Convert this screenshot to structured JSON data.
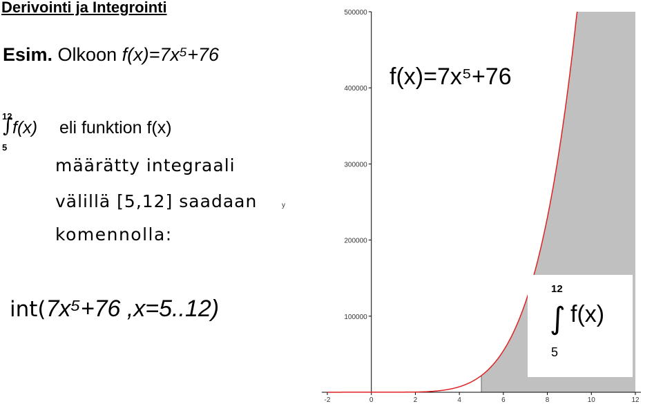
{
  "title": "Derivointi ja Integrointi",
  "example": {
    "lead": "Esim.",
    "text": " Olkoon ",
    "function": "f(x)=7x⁵+76"
  },
  "integral": {
    "upper": "12",
    "lower": "5",
    "function": "f(x)",
    "line1": "eli funktion f(x)",
    "line2": "määrätty integraali",
    "line3": "välillä [5,12] saadaan",
    "line4": "komennolla:"
  },
  "command": {
    "prefix": "int(",
    "expr": "7x⁵+76 ,x=5..12)"
  },
  "chart_data": {
    "type": "area",
    "function": "7x^5+76",
    "xlabel": "",
    "ylabel": "y",
    "xlim": [
      -2,
      12
    ],
    "ylim": [
      0,
      500000
    ],
    "x_ticks": [
      "-2",
      "0",
      "2",
      "4",
      "6",
      "8",
      "10",
      "12"
    ],
    "y_ticks": [
      "100000",
      "200000",
      "300000",
      "400000",
      "500000"
    ],
    "shaded_interval": [
      5,
      12
    ],
    "plot_label": "f(x)=7x⁵+76",
    "inset": {
      "upper": "12",
      "lower": "5",
      "function": "f(x)"
    },
    "colors": {
      "curve": "#e02020",
      "fill": "#c0c0c0",
      "axis": "#000000"
    }
  }
}
